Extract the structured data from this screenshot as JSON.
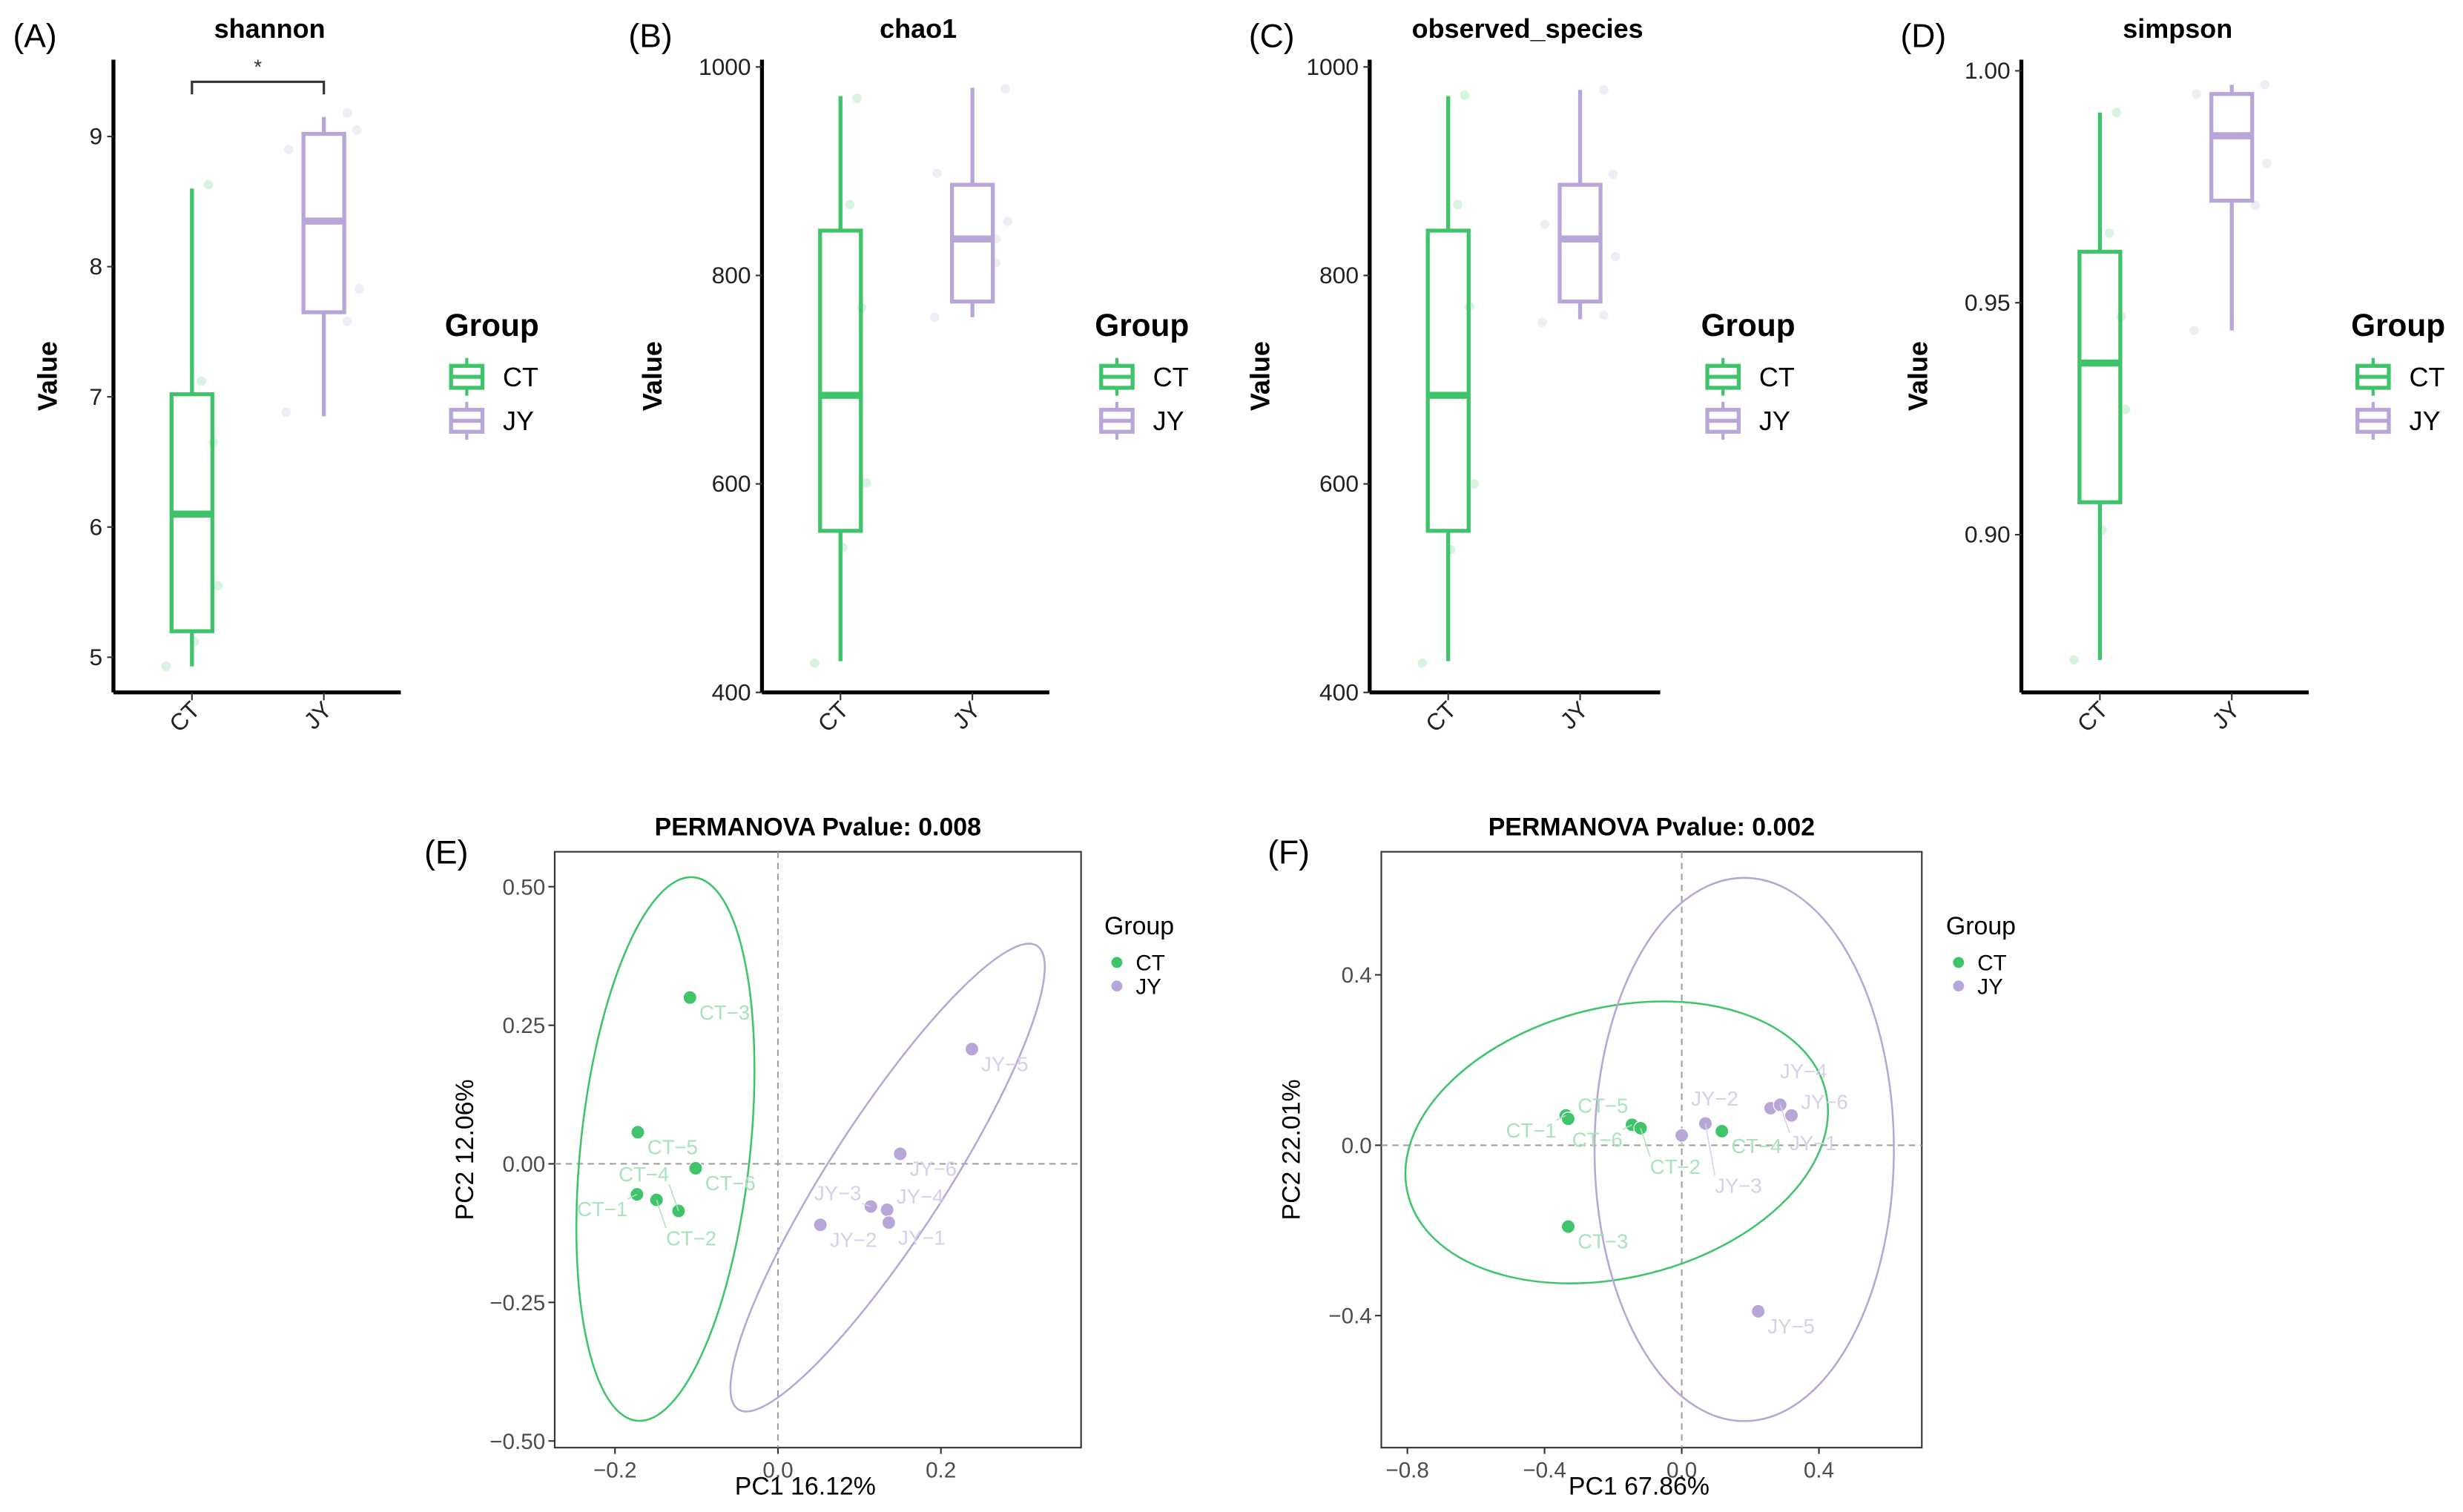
{
  "colors": {
    "CT": "#3fc46b",
    "JY": "#b9a6d9",
    "CT_label": "#a9e3bb",
    "JY_label": "#d8cfea"
  },
  "legend": {
    "title": "Group",
    "entries": [
      "CT",
      "JY"
    ]
  },
  "chart_data": [
    {
      "panel": "(A)",
      "type": "box",
      "title": "shannon",
      "ylabel": "Value",
      "categories": [
        "CT",
        "JY"
      ],
      "ylim": [
        4.73,
        9.59
      ],
      "yticks": [
        5,
        6,
        7,
        8,
        9
      ],
      "ytick_labels": [
        "5",
        "6",
        "7",
        "8",
        "9"
      ],
      "significance": "*",
      "boxes": [
        {
          "group": "CT",
          "min": 4.93,
          "q1": 5.2,
          "median": 6.1,
          "q3": 7.02,
          "max": 8.6,
          "points": [
            4.93,
            5.12,
            5.55,
            6.65,
            7.12,
            8.63
          ]
        },
        {
          "group": "JY",
          "min": 6.85,
          "q1": 7.65,
          "median": 8.35,
          "q3": 9.02,
          "max": 9.15,
          "points": [
            6.88,
            7.58,
            7.83,
            8.9,
            9.05,
            9.18
          ]
        }
      ]
    },
    {
      "panel": "(B)",
      "type": "box",
      "title": "chao1",
      "ylabel": "Value",
      "categories": [
        "CT",
        "JY"
      ],
      "ylim": [
        400,
        1007
      ],
      "yticks": [
        400,
        600,
        800,
        1000
      ],
      "ytick_labels": [
        "400",
        "600",
        "800",
        "1000"
      ],
      "boxes": [
        {
          "group": "CT",
          "min": 430,
          "q1": 555,
          "median": 685,
          "q3": 843,
          "max": 972,
          "points": [
            428,
            539,
            601,
            769,
            868,
            970
          ]
        },
        {
          "group": "JY",
          "min": 760,
          "q1": 775,
          "median": 835,
          "q3": 887,
          "max": 980,
          "points": [
            760,
            812,
            852,
            898,
            979,
            835
          ]
        }
      ]
    },
    {
      "panel": "(C)",
      "type": "box",
      "title": "observed_species",
      "ylabel": "Value",
      "categories": [
        "CT",
        "JY"
      ],
      "ylim": [
        400,
        1007
      ],
      "yticks": [
        400,
        600,
        800,
        1000
      ],
      "ytick_labels": [
        "400",
        "600",
        "800",
        "1000"
      ],
      "boxes": [
        {
          "group": "CT",
          "min": 430,
          "q1": 555,
          "median": 685,
          "q3": 843,
          "max": 972,
          "points": [
            428,
            537,
            600,
            770,
            868,
            973
          ]
        },
        {
          "group": "JY",
          "min": 758,
          "q1": 775,
          "median": 835,
          "q3": 887,
          "max": 978,
          "points": [
            755,
            762,
            818,
            849,
            897,
            978
          ]
        }
      ]
    },
    {
      "panel": "(D)",
      "type": "box",
      "title": "simpson",
      "ylabel": "Value",
      "categories": [
        "CT",
        "JY"
      ],
      "ylim": [
        0.866,
        1.0024
      ],
      "yticks": [
        0.9,
        0.95,
        1.0
      ],
      "ytick_labels": [
        "0.90",
        "0.95",
        "1.00"
      ],
      "boxes": [
        {
          "group": "CT",
          "min": 0.873,
          "q1": 0.907,
          "median": 0.937,
          "q3": 0.961,
          "max": 0.991,
          "points": [
            0.873,
            0.901,
            0.927,
            0.947,
            0.965,
            0.991
          ]
        },
        {
          "group": "JY",
          "min": 0.944,
          "q1": 0.972,
          "median": 0.986,
          "q3": 0.995,
          "max": 0.997,
          "points": [
            0.944,
            0.971,
            0.98,
            0.995,
            0.997
          ]
        }
      ]
    },
    {
      "panel": "(E)",
      "type": "scatter",
      "title": "PERMANOVA Pvalue: 0.008",
      "xlabel": "PC1 16.12%",
      "ylabel": "PC2 12.06%",
      "xlim": [
        -0.274,
        0.372
      ],
      "ylim": [
        -0.512,
        0.563
      ],
      "xticks": [
        -0.2,
        0.0,
        0.2
      ],
      "xtick_labels": [
        "−0.2",
        "0.0",
        "0.2"
      ],
      "yticks": [
        0.5,
        0.25,
        0.0,
        -0.25,
        -0.5
      ],
      "ytick_labels": [
        "0.50",
        "0.25",
        "0.00",
        "−0.25",
        "−0.50"
      ],
      "points": [
        {
          "label": "CT−3",
          "group": "CT",
          "x": -0.108,
          "y": 0.3
        },
        {
          "label": "CT−5",
          "group": "CT",
          "x": -0.172,
          "y": 0.057
        },
        {
          "label": "CT−6",
          "group": "CT",
          "x": -0.101,
          "y": -0.008
        },
        {
          "label": "CT−1",
          "group": "CT",
          "x": -0.173,
          "y": -0.055
        },
        {
          "label": "CT−2",
          "group": "CT",
          "x": -0.149,
          "y": -0.065
        },
        {
          "label": "CT−4",
          "group": "CT",
          "x": -0.122,
          "y": -0.085
        },
        {
          "label": "JY−5",
          "group": "JY",
          "x": 0.238,
          "y": 0.207
        },
        {
          "label": "JY−6",
          "group": "JY",
          "x": 0.15,
          "y": 0.018
        },
        {
          "label": "JY−2",
          "group": "JY",
          "x": 0.052,
          "y": -0.11
        },
        {
          "label": "JY−3",
          "group": "JY",
          "x": 0.114,
          "y": -0.077
        },
        {
          "label": "JY−4",
          "group": "JY",
          "x": 0.134,
          "y": -0.083
        },
        {
          "label": "JY−1",
          "group": "JY",
          "x": 0.136,
          "y": -0.106
        }
      ]
    },
    {
      "panel": "(F)",
      "type": "scatter",
      "title": "PERMANOVA Pvalue: 0.002",
      "xlabel": "PC1 67.86%",
      "ylabel": "PC2 22.01%",
      "xlim": [
        -0.876,
        0.7
      ],
      "ylim": [
        -0.71,
        0.689
      ],
      "xticks": [
        -0.8,
        -0.4,
        0.0,
        0.4
      ],
      "xtick_labels": [
        "−0.8",
        "−0.4",
        "0.0",
        "0.4"
      ],
      "yticks": [
        0.4,
        0.0,
        -0.4
      ],
      "ytick_labels": [
        "0.4",
        "0.0",
        "−0.4"
      ],
      "points": [
        {
          "label": "CT−1",
          "group": "CT",
          "x": -0.338,
          "y": 0.07
        },
        {
          "label": "CT−5",
          "group": "CT",
          "x": -0.331,
          "y": 0.062
        },
        {
          "label": "CT−6",
          "group": "CT",
          "x": -0.145,
          "y": 0.048
        },
        {
          "label": "CT−2",
          "group": "CT",
          "x": -0.12,
          "y": 0.04
        },
        {
          "label": "CT−4",
          "group": "CT",
          "x": 0.117,
          "y": 0.033
        },
        {
          "label": "CT−3",
          "group": "CT",
          "x": -0.331,
          "y": -0.191
        },
        {
          "label": "JY−2",
          "group": "JY",
          "x": 0.0,
          "y": 0.023
        },
        {
          "label": "JY−3",
          "group": "JY",
          "x": 0.069,
          "y": 0.051
        },
        {
          "label": "JY−4",
          "group": "JY",
          "x": 0.259,
          "y": 0.087
        },
        {
          "label": "JY−1",
          "group": "JY",
          "x": 0.287,
          "y": 0.095
        },
        {
          "label": "JY−6",
          "group": "JY",
          "x": 0.32,
          "y": 0.07
        },
        {
          "label": "JY−5",
          "group": "JY",
          "x": 0.223,
          "y": -0.39
        }
      ]
    }
  ]
}
